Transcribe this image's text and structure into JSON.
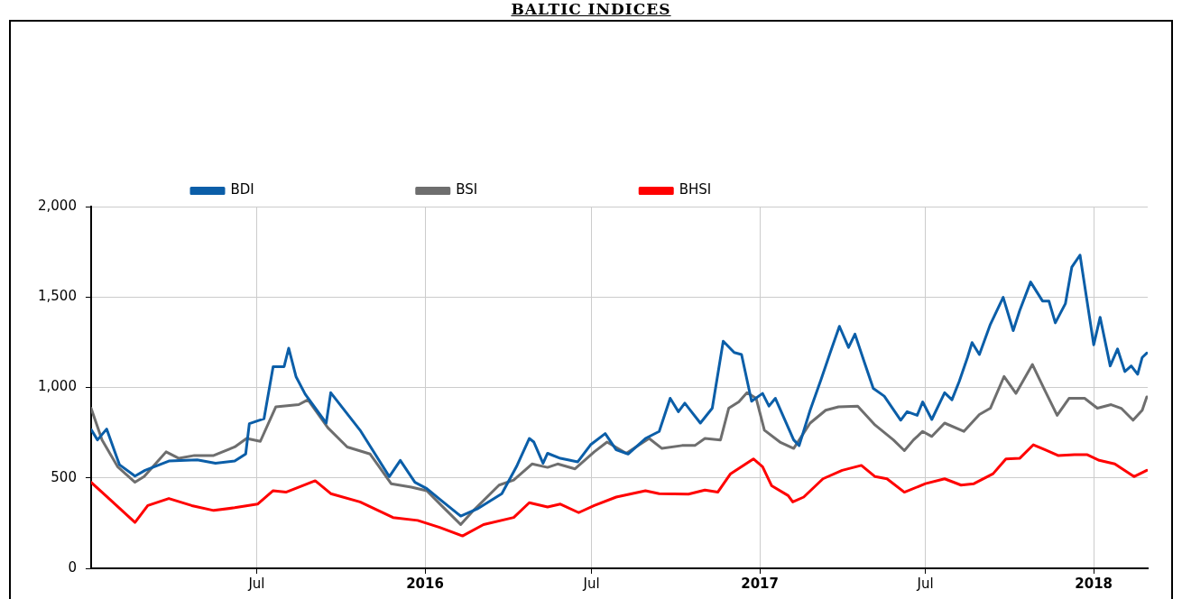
{
  "chart_data": {
    "type": "line",
    "title": "BALTIC INDICES",
    "xlim": [
      "2015-01-01",
      "2018-03-01"
    ],
    "xticks": [
      {
        "value": "2015-07-01",
        "label": "Jul"
      },
      {
        "value": "2016-01-01",
        "label": "2016"
      },
      {
        "value": "2016-07-01",
        "label": "Jul"
      },
      {
        "value": "2017-01-01",
        "label": "2017"
      },
      {
        "value": "2017-07-01",
        "label": "Jul"
      },
      {
        "value": "2018-01-01",
        "label": "2018"
      }
    ],
    "ylim": [
      0,
      2000
    ],
    "yticks": [
      {
        "value": 0,
        "label": "0"
      },
      {
        "value": 500,
        "label": "500"
      },
      {
        "value": 1000,
        "label": "1,000"
      },
      {
        "value": 1500,
        "label": "1,500"
      },
      {
        "value": 2000,
        "label": "2,000"
      }
    ],
    "grid": true,
    "legend": "top left",
    "series": [
      {
        "name": "BDI",
        "color": "#0b5ea8",
        "x": [
          "2015-01-01",
          "2015-01-08",
          "2015-01-18",
          "2015-02-01",
          "2015-02-18",
          "2015-03-01",
          "2015-03-27",
          "2015-04-27",
          "2015-05-17",
          "2015-06-07",
          "2015-06-19",
          "2015-06-23",
          "2015-07-09",
          "2015-07-19",
          "2015-07-31",
          "2015-08-05",
          "2015-08-13",
          "2015-08-23",
          "2015-09-15",
          "2015-09-20",
          "2015-10-22",
          "2015-11-23",
          "2015-12-05",
          "2015-12-21",
          "2016-01-03",
          "2016-01-18",
          "2016-02-09",
          "2016-02-27",
          "2016-03-25",
          "2016-04-10",
          "2016-04-24",
          "2016-04-29",
          "2016-05-09",
          "2016-05-14",
          "2016-05-28",
          "2016-06-16",
          "2016-06-30",
          "2016-07-16",
          "2016-07-28",
          "2016-08-10",
          "2016-08-29",
          "2016-09-13",
          "2016-09-25",
          "2016-10-04",
          "2016-10-11",
          "2016-10-28",
          "2016-11-10",
          "2016-11-22",
          "2016-12-04",
          "2016-12-12",
          "2016-12-23",
          "2017-01-04",
          "2017-01-11",
          "2017-01-18",
          "2017-02-07",
          "2017-02-13",
          "2017-02-25",
          "2017-03-09",
          "2017-03-19",
          "2017-03-29",
          "2017-04-08",
          "2017-04-15",
          "2017-04-25",
          "2017-05-05",
          "2017-05-17",
          "2017-06-04",
          "2017-06-11",
          "2017-06-22",
          "2017-06-28",
          "2017-07-08",
          "2017-07-22",
          "2017-07-30",
          "2017-08-07",
          "2017-08-16",
          "2017-08-21",
          "2017-08-29",
          "2017-09-10",
          "2017-09-24",
          "2017-10-05",
          "2017-10-12",
          "2017-10-24",
          "2017-11-06",
          "2017-11-13",
          "2017-11-20",
          "2017-12-01",
          "2017-12-08",
          "2017-12-17",
          "2018-01-01",
          "2018-01-08",
          "2018-01-19",
          "2018-01-27",
          "2018-02-04",
          "2018-02-11",
          "2018-02-18",
          "2018-02-23",
          "2018-02-28"
        ],
        "values": [
          768,
          710,
          770,
          573,
          510,
          542,
          593,
          600,
          581,
          593,
          632,
          800,
          827,
          1115,
          1115,
          1217,
          1060,
          963,
          803,
          971,
          764,
          507,
          597,
          476,
          441,
          378,
          289,
          328,
          413,
          562,
          718,
          698,
          581,
          636,
          608,
          589,
          683,
          745,
          655,
          632,
          718,
          757,
          940,
          866,
          913,
          803,
          885,
          1256,
          1193,
          1182,
          924,
          967,
          897,
          940,
          710,
          679,
          874,
          1045,
          1193,
          1338,
          1221,
          1295,
          1143,
          995,
          952,
          819,
          866,
          846,
          920,
          823,
          971,
          932,
          1034,
          1166,
          1248,
          1182,
          1349,
          1498,
          1314,
          1424,
          1583,
          1478,
          1478,
          1357,
          1463,
          1665,
          1732,
          1236,
          1388,
          1119,
          1213,
          1088,
          1119,
          1073,
          1166,
          1190
        ]
      },
      {
        "name": "BSI",
        "color": "#6e6e6e",
        "x": [
          "2015-01-01",
          "2015-01-13",
          "2015-01-30",
          "2015-02-18",
          "2015-02-28",
          "2015-03-24",
          "2015-04-07",
          "2015-04-24",
          "2015-05-15",
          "2015-06-07",
          "2015-06-20",
          "2015-07-05",
          "2015-07-22",
          "2015-08-16",
          "2015-08-26",
          "2015-09-17",
          "2015-10-08",
          "2015-11-02",
          "2015-11-25",
          "2015-12-17",
          "2016-01-03",
          "2016-01-19",
          "2016-02-09",
          "2016-02-23",
          "2016-03-22",
          "2016-04-07",
          "2016-04-27",
          "2016-05-14",
          "2016-05-25",
          "2016-06-13",
          "2016-07-04",
          "2016-07-18",
          "2016-08-08",
          "2016-09-02",
          "2016-09-16",
          "2016-10-08",
          "2016-10-22",
          "2016-11-02",
          "2016-11-19",
          "2016-11-28",
          "2016-12-09",
          "2016-12-18",
          "2016-12-28",
          "2017-01-06",
          "2017-01-23",
          "2017-02-07",
          "2017-02-25",
          "2017-03-14",
          "2017-03-28",
          "2017-04-18",
          "2017-05-07",
          "2017-05-27",
          "2017-06-08",
          "2017-06-18",
          "2017-06-28",
          "2017-07-08",
          "2017-07-22",
          "2017-08-12",
          "2017-08-29",
          "2017-09-10",
          "2017-09-25",
          "2017-10-08",
          "2017-10-26",
          "2017-11-09",
          "2017-11-22",
          "2017-12-05",
          "2017-12-22",
          "2018-01-05",
          "2018-01-20",
          "2018-01-31",
          "2018-02-13",
          "2018-02-23",
          "2018-02-28"
        ],
        "values": [
          885,
          710,
          562,
          476,
          507,
          644,
          608,
          624,
          624,
          671,
          718,
          702,
          893,
          905,
          932,
          776,
          671,
          632,
          468,
          449,
          429,
          347,
          242,
          320,
          460,
          488,
          577,
          558,
          577,
          550,
          644,
          698,
          636,
          718,
          663,
          679,
          679,
          718,
          710,
          885,
          920,
          971,
          940,
          764,
          698,
          663,
          803,
          874,
          893,
          897,
          792,
          710,
          651,
          710,
          757,
          729,
          803,
          757,
          850,
          885,
          1061,
          967,
          1127,
          979,
          846,
          940,
          940,
          885,
          905,
          885,
          819,
          874,
          948
        ]
      },
      {
        "name": "BHSI",
        "color": "#ff0000",
        "x": [
          "2015-01-01",
          "2015-01-17",
          "2015-02-18",
          "2015-03-04",
          "2015-03-27",
          "2015-04-21",
          "2015-05-15",
          "2015-06-07",
          "2015-07-02",
          "2015-07-19",
          "2015-08-02",
          "2015-09-03",
          "2015-09-20",
          "2015-10-22",
          "2015-11-27",
          "2015-12-24",
          "2016-01-17",
          "2016-02-11",
          "2016-03-05",
          "2016-04-07",
          "2016-04-24",
          "2016-05-14",
          "2016-05-28",
          "2016-06-17",
          "2016-07-04",
          "2016-07-28",
          "2016-08-29",
          "2016-09-13",
          "2016-10-15",
          "2016-11-02",
          "2016-11-16",
          "2016-11-30",
          "2016-12-25",
          "2017-01-04",
          "2017-01-14",
          "2017-02-01",
          "2017-02-06",
          "2017-02-18",
          "2017-03-11",
          "2017-04-01",
          "2017-04-22",
          "2017-05-07",
          "2017-05-20",
          "2017-06-08",
          "2017-07-01",
          "2017-07-22",
          "2017-08-09",
          "2017-08-23",
          "2017-09-13",
          "2017-09-27",
          "2017-10-12",
          "2017-10-27",
          "2017-11-09",
          "2017-11-23",
          "2017-12-11",
          "2017-12-25",
          "2018-01-07",
          "2018-01-24",
          "2018-02-14",
          "2018-02-28"
        ],
        "values": [
          476,
          402,
          254,
          347,
          386,
          347,
          320,
          335,
          355,
          429,
          421,
          484,
          413,
          367,
          281,
          265,
          226,
          179,
          242,
          281,
          363,
          339,
          355,
          308,
          347,
          394,
          429,
          413,
          410,
          433,
          421,
          523,
          605,
          562,
          456,
          402,
          367,
          394,
          495,
          542,
          569,
          507,
          495,
          421,
          468,
          495,
          460,
          468,
          523,
          605,
          608,
          683,
          655,
          624,
          628,
          628,
          597,
          577,
          507,
          542
        ]
      }
    ]
  }
}
